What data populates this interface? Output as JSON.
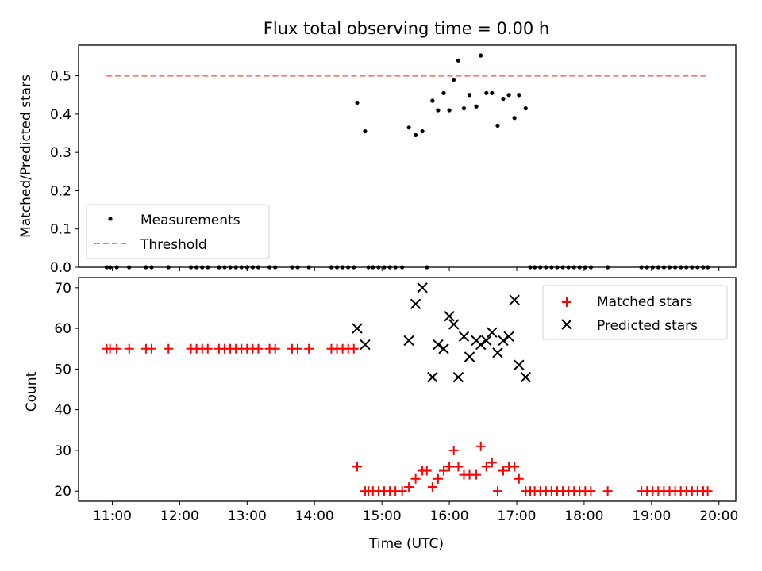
{
  "title": "Flux total observing time = 0.00 h",
  "colors": {
    "measurement": "#000000",
    "threshold": "#ff7070",
    "matched": "#ff0000",
    "predicted": "#000000"
  },
  "chart_data": [
    {
      "type": "scatter",
      "title": "Flux total observing time = 0.00 h",
      "xlabel": "",
      "ylabel": "Matched/Predicted stars",
      "xlim": [
        "10:30",
        "20:15"
      ],
      "ylim": [
        0,
        0.58
      ],
      "yticks": [
        "0.0",
        "0.1",
        "0.2",
        "0.3",
        "0.4",
        "0.5"
      ],
      "grid": false,
      "legend_position": "lower-left",
      "legend": [
        "Measurements",
        "Threshold"
      ],
      "series": [
        {
          "name": "Measurements",
          "marker": "dot",
          "points": [
            [
              "10:55",
              0
            ],
            [
              "10:58",
              0
            ],
            [
              "11:04",
              0
            ],
            [
              "11:15",
              0
            ],
            [
              "11:30",
              0
            ],
            [
              "11:35",
              0
            ],
            [
              "11:50",
              0
            ],
            [
              "12:10",
              0
            ],
            [
              "12:15",
              0
            ],
            [
              "12:20",
              0
            ],
            [
              "12:25",
              0
            ],
            [
              "12:35",
              0
            ],
            [
              "12:40",
              0
            ],
            [
              "12:45",
              0
            ],
            [
              "12:50",
              0
            ],
            [
              "12:55",
              0
            ],
            [
              "13:00",
              0
            ],
            [
              "13:05",
              0
            ],
            [
              "13:10",
              0
            ],
            [
              "13:20",
              0
            ],
            [
              "13:25",
              0
            ],
            [
              "13:40",
              0
            ],
            [
              "13:45",
              0
            ],
            [
              "13:55",
              0
            ],
            [
              "14:15",
              0
            ],
            [
              "14:20",
              0
            ],
            [
              "14:25",
              0
            ],
            [
              "14:30",
              0
            ],
            [
              "14:35",
              0
            ],
            [
              "14:38",
              0.43
            ],
            [
              "14:45",
              0.355
            ],
            [
              "14:48",
              0
            ],
            [
              "14:52",
              0
            ],
            [
              "14:57",
              0
            ],
            [
              "15:02",
              0
            ],
            [
              "15:07",
              0
            ],
            [
              "15:12",
              0
            ],
            [
              "15:18",
              0
            ],
            [
              "15:24",
              0.365
            ],
            [
              "15:30",
              0.345
            ],
            [
              "15:36",
              0.355
            ],
            [
              "15:40",
              0
            ],
            [
              "15:45",
              0.435
            ],
            [
              "15:50",
              0.41
            ],
            [
              "15:55",
              0.455
            ],
            [
              "16:00",
              0.41
            ],
            [
              "16:04",
              0.49
            ],
            [
              "16:08",
              0.54
            ],
            [
              "16:13",
              0.415
            ],
            [
              "16:18",
              0.45
            ],
            [
              "16:24",
              0.42
            ],
            [
              "16:28",
              0.553
            ],
            [
              "16:33",
              0.455
            ],
            [
              "16:38",
              0.455
            ],
            [
              "16:43",
              0.37
            ],
            [
              "16:48",
              0.44
            ],
            [
              "16:53",
              0.45
            ],
            [
              "16:58",
              0.39
            ],
            [
              "17:02",
              0.45
            ],
            [
              "17:08",
              0.415
            ],
            [
              "17:12",
              0
            ],
            [
              "17:16",
              0
            ],
            [
              "17:21",
              0
            ],
            [
              "17:26",
              0
            ],
            [
              "17:31",
              0
            ],
            [
              "17:36",
              0
            ],
            [
              "17:41",
              0
            ],
            [
              "17:46",
              0
            ],
            [
              "17:51",
              0
            ],
            [
              "17:56",
              0
            ],
            [
              "18:01",
              0
            ],
            [
              "18:06",
              0
            ],
            [
              "18:21",
              0
            ],
            [
              "18:51",
              0
            ],
            [
              "18:56",
              0
            ],
            [
              "19:01",
              0
            ],
            [
              "19:06",
              0
            ],
            [
              "19:11",
              0
            ],
            [
              "19:16",
              0
            ],
            [
              "19:21",
              0
            ],
            [
              "19:26",
              0
            ],
            [
              "19:31",
              0
            ],
            [
              "19:36",
              0
            ],
            [
              "19:41",
              0
            ],
            [
              "19:46",
              0
            ],
            [
              "19:50",
              0
            ]
          ]
        },
        {
          "name": "Threshold",
          "style": "dashed",
          "points": [
            [
              "10:55",
              0.5
            ],
            [
              "19:50",
              0.5
            ]
          ]
        }
      ]
    },
    {
      "type": "scatter",
      "xlabel": "Time (UTC)",
      "ylabel": "Count",
      "xlim": [
        "10:30",
        "20:15"
      ],
      "ylim": [
        17.5,
        72.5
      ],
      "xticks": [
        "11:00",
        "12:00",
        "13:00",
        "14:00",
        "15:00",
        "16:00",
        "17:00",
        "18:00",
        "19:00",
        "20:00"
      ],
      "yticks": [
        "20",
        "30",
        "40",
        "50",
        "60",
        "70"
      ],
      "grid": false,
      "legend_position": "top-right",
      "legend": [
        "Matched stars",
        "Predicted stars"
      ],
      "series": [
        {
          "name": "Matched stars",
          "marker": "plus",
          "points": [
            [
              "10:55",
              55
            ],
            [
              "10:58",
              55
            ],
            [
              "11:04",
              55
            ],
            [
              "11:15",
              55
            ],
            [
              "11:30",
              55
            ],
            [
              "11:35",
              55
            ],
            [
              "11:50",
              55
            ],
            [
              "12:10",
              55
            ],
            [
              "12:15",
              55
            ],
            [
              "12:20",
              55
            ],
            [
              "12:25",
              55
            ],
            [
              "12:35",
              55
            ],
            [
              "12:40",
              55
            ],
            [
              "12:45",
              55
            ],
            [
              "12:50",
              55
            ],
            [
              "12:55",
              55
            ],
            [
              "13:00",
              55
            ],
            [
              "13:05",
              55
            ],
            [
              "13:10",
              55
            ],
            [
              "13:20",
              55
            ],
            [
              "13:25",
              55
            ],
            [
              "13:40",
              55
            ],
            [
              "13:45",
              55
            ],
            [
              "13:55",
              55
            ],
            [
              "14:15",
              55
            ],
            [
              "14:20",
              55
            ],
            [
              "14:25",
              55
            ],
            [
              "14:30",
              55
            ],
            [
              "14:35",
              55
            ],
            [
              "14:38",
              26
            ],
            [
              "14:45",
              20
            ],
            [
              "14:48",
              20
            ],
            [
              "14:52",
              20
            ],
            [
              "14:57",
              20
            ],
            [
              "15:02",
              20
            ],
            [
              "15:07",
              20
            ],
            [
              "15:12",
              20
            ],
            [
              "15:18",
              20
            ],
            [
              "15:24",
              21
            ],
            [
              "15:30",
              23
            ],
            [
              "15:36",
              25
            ],
            [
              "15:40",
              25
            ],
            [
              "15:45",
              21
            ],
            [
              "15:50",
              23
            ],
            [
              "15:55",
              25
            ],
            [
              "16:00",
              26
            ],
            [
              "16:04",
              30
            ],
            [
              "16:08",
              26
            ],
            [
              "16:13",
              24
            ],
            [
              "16:18",
              24
            ],
            [
              "16:24",
              24
            ],
            [
              "16:28",
              31
            ],
            [
              "16:33",
              26
            ],
            [
              "16:38",
              27
            ],
            [
              "16:43",
              20
            ],
            [
              "16:48",
              25
            ],
            [
              "16:53",
              26
            ],
            [
              "16:58",
              26
            ],
            [
              "17:02",
              23
            ],
            [
              "17:08",
              20
            ],
            [
              "17:12",
              20
            ],
            [
              "17:16",
              20
            ],
            [
              "17:21",
              20
            ],
            [
              "17:26",
              20
            ],
            [
              "17:31",
              20
            ],
            [
              "17:36",
              20
            ],
            [
              "17:41",
              20
            ],
            [
              "17:46",
              20
            ],
            [
              "17:51",
              20
            ],
            [
              "17:56",
              20
            ],
            [
              "18:01",
              20
            ],
            [
              "18:06",
              20
            ],
            [
              "18:21",
              20
            ],
            [
              "18:51",
              20
            ],
            [
              "18:56",
              20
            ],
            [
              "19:01",
              20
            ],
            [
              "19:06",
              20
            ],
            [
              "19:11",
              20
            ],
            [
              "19:16",
              20
            ],
            [
              "19:21",
              20
            ],
            [
              "19:26",
              20
            ],
            [
              "19:31",
              20
            ],
            [
              "19:36",
              20
            ],
            [
              "19:41",
              20
            ],
            [
              "19:46",
              20
            ],
            [
              "19:50",
              20
            ]
          ]
        },
        {
          "name": "Predicted stars",
          "marker": "x",
          "points": [
            [
              "14:38",
              60
            ],
            [
              "14:45",
              56
            ],
            [
              "15:24",
              57
            ],
            [
              "15:30",
              66
            ],
            [
              "15:36",
              70
            ],
            [
              "15:45",
              48
            ],
            [
              "15:50",
              56
            ],
            [
              "15:55",
              55
            ],
            [
              "16:00",
              63
            ],
            [
              "16:04",
              61
            ],
            [
              "16:08",
              48
            ],
            [
              "16:13",
              58
            ],
            [
              "16:18",
              53
            ],
            [
              "16:24",
              57
            ],
            [
              "16:28",
              56
            ],
            [
              "16:33",
              57
            ],
            [
              "16:38",
              59
            ],
            [
              "16:43",
              54
            ],
            [
              "16:48",
              57
            ],
            [
              "16:53",
              58
            ],
            [
              "16:58",
              67
            ],
            [
              "17:02",
              51
            ],
            [
              "17:08",
              48
            ]
          ]
        }
      ]
    }
  ]
}
